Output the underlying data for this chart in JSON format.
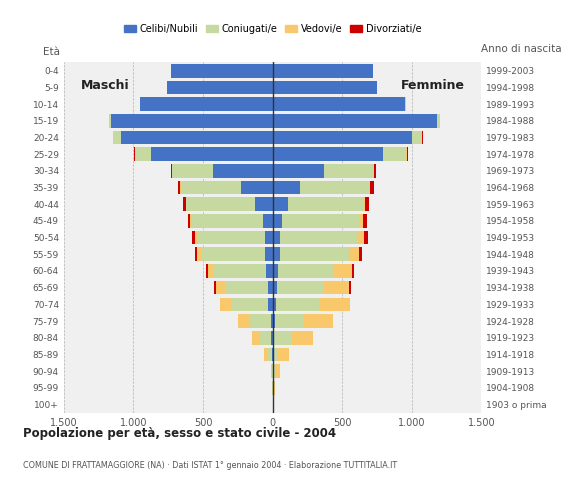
{
  "age_groups": [
    "100+",
    "95-99",
    "90-94",
    "85-89",
    "80-84",
    "75-79",
    "70-74",
    "65-69",
    "60-64",
    "55-59",
    "50-54",
    "45-49",
    "40-44",
    "35-39",
    "30-34",
    "25-29",
    "20-24",
    "15-19",
    "10-14",
    "5-9",
    "0-4"
  ],
  "birth_years": [
    "1903 o prima",
    "1904-1908",
    "1909-1913",
    "1914-1918",
    "1919-1923",
    "1924-1928",
    "1929-1933",
    "1934-1938",
    "1939-1943",
    "1944-1948",
    "1949-1953",
    "1954-1958",
    "1959-1963",
    "1964-1968",
    "1969-1973",
    "1974-1978",
    "1979-1983",
    "1984-1988",
    "1989-1993",
    "1994-1998",
    "1999-2003"
  ],
  "males": {
    "celibe": [
      0,
      0,
      0,
      5,
      10,
      15,
      30,
      35,
      50,
      55,
      55,
      70,
      130,
      230,
      430,
      870,
      1090,
      1160,
      950,
      760,
      730
    ],
    "coniugato": [
      0,
      5,
      10,
      25,
      80,
      150,
      270,
      310,
      370,
      460,
      490,
      510,
      490,
      430,
      290,
      120,
      55,
      15,
      5,
      2,
      0
    ],
    "vedovo": [
      0,
      2,
      5,
      30,
      60,
      80,
      80,
      60,
      45,
      25,
      15,
      10,
      5,
      3,
      2,
      2,
      0,
      0,
      0,
      0,
      0
    ],
    "divorziato": [
      0,
      0,
      0,
      0,
      0,
      0,
      0,
      15,
      10,
      20,
      20,
      20,
      20,
      20,
      10,
      5,
      2,
      0,
      0,
      0,
      0
    ]
  },
  "females": {
    "celibe": [
      0,
      0,
      5,
      10,
      10,
      15,
      25,
      30,
      40,
      50,
      55,
      65,
      110,
      200,
      370,
      790,
      1000,
      1180,
      950,
      750,
      720
    ],
    "coniugato": [
      0,
      5,
      10,
      30,
      120,
      200,
      310,
      340,
      400,
      500,
      560,
      560,
      540,
      490,
      350,
      170,
      70,
      20,
      5,
      2,
      0
    ],
    "vedovo": [
      5,
      15,
      40,
      80,
      160,
      220,
      220,
      180,
      130,
      70,
      40,
      25,
      15,
      10,
      5,
      5,
      2,
      0,
      0,
      0,
      0
    ],
    "divorziato": [
      0,
      0,
      0,
      0,
      0,
      0,
      0,
      10,
      15,
      25,
      30,
      30,
      30,
      25,
      15,
      10,
      5,
      2,
      0,
      0,
      0
    ]
  },
  "colors": {
    "celibe": "#4472c4",
    "coniugato": "#c6d9a0",
    "vedovo": "#f8c86a",
    "divorziato": "#cc0000"
  },
  "legend_labels": [
    "Celibi/Nubili",
    "Coniugati/e",
    "Vedovi/e",
    "Divorziati/e"
  ],
  "title": "Popolazione per età, sesso e stato civile - 2004",
  "subtitle": "COMUNE DI FRATTAMAGGIORE (NA) · Dati ISTAT 1° gennaio 2004 · Elaborazione TUTTITALIA.IT",
  "label_maschi": "Maschi",
  "label_femmine": "Femmine",
  "label_eta": "Età",
  "label_anno": "Anno di nascita",
  "xlim": 1500,
  "bg_color": "#ffffff",
  "plot_bg_color": "#f0f0f0"
}
